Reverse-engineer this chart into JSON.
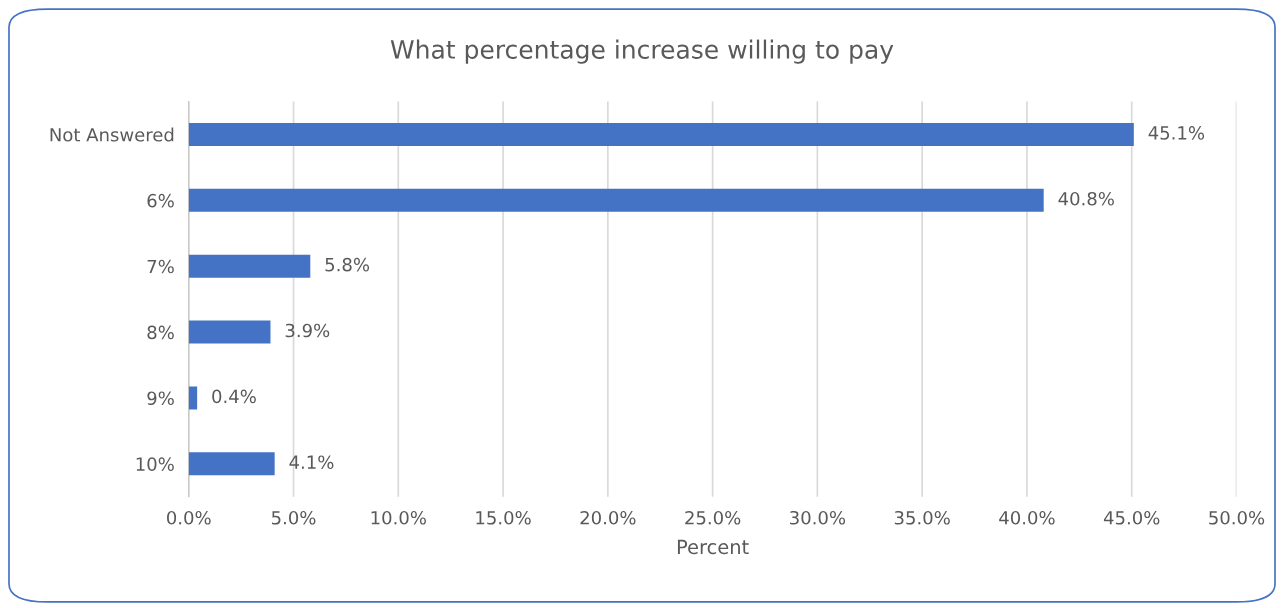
{
  "chart_data": {
    "type": "bar",
    "orientation": "horizontal",
    "title": "What percentage increase willing to pay",
    "xlabel": "Percent",
    "categories": [
      "Not Answered",
      "6%",
      "7%",
      "8%",
      "9%",
      "10%"
    ],
    "values": [
      45.1,
      40.8,
      5.8,
      3.9,
      0.4,
      4.1
    ],
    "value_labels": [
      "45.1%",
      "40.8%",
      "5.8%",
      "3.9%",
      "0.4%",
      "4.1%"
    ],
    "color": "#4472c4",
    "xlim": [
      0,
      50
    ],
    "xticks": [
      {
        "value": 0,
        "label": "0.0%"
      },
      {
        "value": 5,
        "label": "5.0%"
      },
      {
        "value": 10,
        "label": "10.0%"
      },
      {
        "value": 15,
        "label": "15.0%"
      },
      {
        "value": 20,
        "label": "20.0%"
      },
      {
        "value": 25,
        "label": "25.0%"
      },
      {
        "value": 30,
        "label": "30.0%"
      },
      {
        "value": 35,
        "label": "35.0%"
      },
      {
        "value": 40,
        "label": "40.0%"
      },
      {
        "value": 45,
        "label": "45.0%"
      },
      {
        "value": 50,
        "label": "50.0%"
      }
    ],
    "grid": "x"
  }
}
